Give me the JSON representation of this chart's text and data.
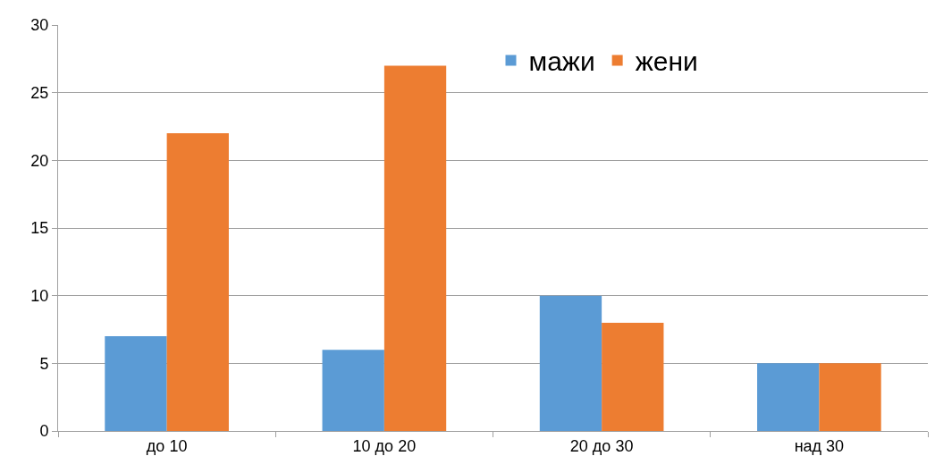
{
  "chart_data": {
    "type": "bar",
    "categories": [
      "до 10",
      "10 до 20",
      "20 до 30",
      "над 30"
    ],
    "series": [
      {
        "name": "мажи",
        "color": "#5b9bd5",
        "values": [
          7,
          6,
          10,
          5
        ]
      },
      {
        "name": "жени",
        "color": "#ed7d31",
        "values": [
          22,
          27,
          8,
          5
        ]
      }
    ],
    "ylim": [
      0,
      30
    ],
    "yticks": [
      0,
      5,
      10,
      15,
      20,
      25,
      30
    ],
    "grid": "y",
    "legend": "top"
  }
}
